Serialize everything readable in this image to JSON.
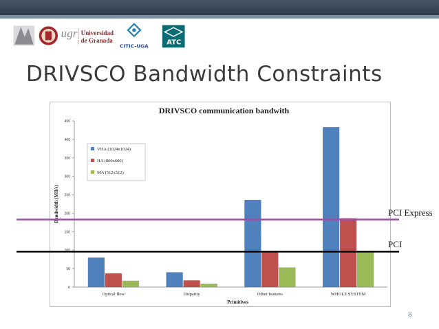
{
  "slide": {
    "title": "DRIVSCO Bandwidth Constraints",
    "page_number": "8"
  },
  "logos": {
    "ugr_text_1": "ugr",
    "ugr_text_2": "Universidad",
    "ugr_text_3": "de Granada",
    "citic_text": "CITIC-UGA",
    "atc_text": "ATC"
  },
  "chart_data": {
    "type": "bar",
    "title": "DRIVSCO communication bandwith",
    "xlabel": "Primitives",
    "ylabel": "Bandwidth (MB/s)",
    "ylim": [
      0,
      450
    ],
    "yticks": [
      0,
      50,
      100,
      150,
      200,
      250,
      300,
      350,
      400,
      450
    ],
    "grid": false,
    "legend_position": "upper-left inside plot",
    "categories": [
      "Optical flow",
      "Disparity",
      "Other features",
      "WHOLE SYSTEM"
    ],
    "series": [
      {
        "name": "VHA (1024x1024)",
        "color": "#4f81bd",
        "values": [
          80,
          40,
          236,
          433
        ]
      },
      {
        "name": "HA (800x600)",
        "color": "#c0504d",
        "values": [
          37,
          18,
          95,
          186
        ]
      },
      {
        "name": "MA (512x512)",
        "color": "#9bbb59",
        "values": [
          17,
          9,
          53,
          95
        ]
      }
    ],
    "reference_lines": [
      {
        "label": "PCI Express",
        "value": 183,
        "color": "#9b4fa5"
      },
      {
        "label": "PCI",
        "value": 96,
        "color": "#000000"
      }
    ]
  }
}
